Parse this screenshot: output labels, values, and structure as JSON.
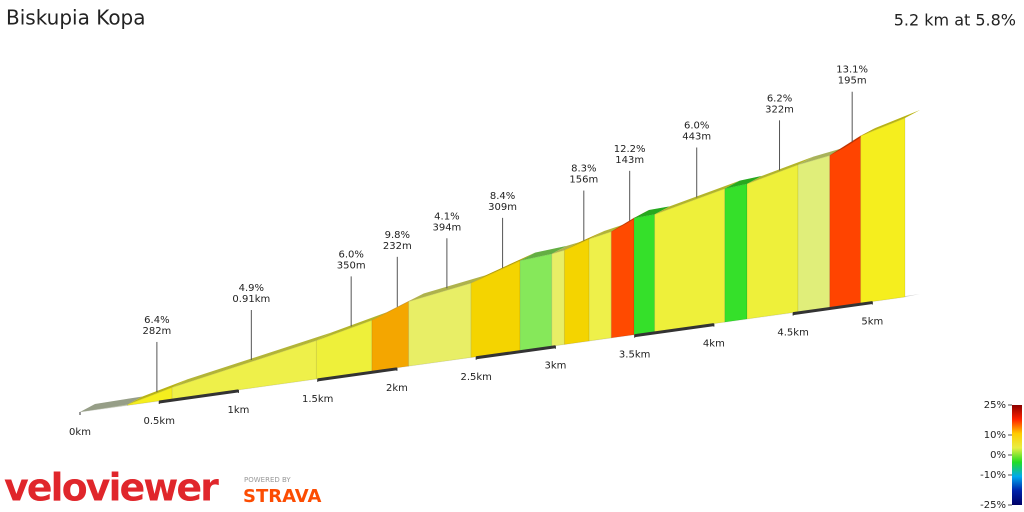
{
  "chart_data": {
    "type": "profile",
    "title": "Biskupia Kopa",
    "subtitle": "5.2 km at 5.8%",
    "lengths": [
      300,
      282,
      910,
      350,
      232,
      394,
      309,
      200,
      80,
      156,
      140,
      143,
      130,
      443,
      140,
      322,
      200,
      195,
      280
    ],
    "gradients": [
      0.5,
      6.4,
      4.9,
      6.0,
      9.8,
      4.1,
      8.4,
      2.0,
      4.0,
      8.3,
      5.0,
      12.2,
      1.0,
      6.0,
      2.0,
      6.2,
      4.0,
      13.1,
      7.0
    ],
    "colors": [
      "#c9d3b4",
      "#f5ee1e",
      "#eef04a",
      "#eef03a",
      "#f4a600",
      "#e8ee66",
      "#f4d400",
      "#86e85a",
      "#e8ee66",
      "#f4d400",
      "#eef04a",
      "#ff4a00",
      "#35e02a",
      "#eef03a",
      "#35e02a",
      "#eef03a",
      "#e0ee7a",
      "#ff4400",
      "#f5ee1e"
    ],
    "gradient_labels": [
      null,
      "6.4%",
      "4.9%",
      "6.0%",
      "9.8%",
      "4.1%",
      "8.4%",
      null,
      null,
      "8.3%",
      null,
      "12.2%",
      null,
      "6.0%",
      null,
      "6.2%",
      null,
      "13.1%",
      null
    ],
    "length_labels": [
      null,
      "282m",
      "0.91km",
      "350m",
      "232m",
      "394m",
      "309m",
      null,
      null,
      "156m",
      null,
      "143m",
      null,
      "443m",
      null,
      "322m",
      null,
      "195m",
      null
    ],
    "xlim": [
      0,
      5206
    ],
    "xticks": [
      {
        "value": 0,
        "label": "0km"
      },
      {
        "value": 500,
        "label": "0.5km"
      },
      {
        "value": 1000,
        "label": "1km"
      },
      {
        "value": 1500,
        "label": "1.5km"
      },
      {
        "value": 2000,
        "label": "2km"
      },
      {
        "value": 2500,
        "label": "2.5km"
      },
      {
        "value": 3000,
        "label": "3km"
      },
      {
        "value": 3500,
        "label": "3.5km"
      },
      {
        "value": 4000,
        "label": "4km"
      },
      {
        "value": 4500,
        "label": "4.5km"
      },
      {
        "value": 5000,
        "label": "5km"
      }
    ],
    "scale_ticks": [
      {
        "value": 25,
        "label": "25%"
      },
      {
        "value": 10,
        "label": "10%"
      },
      {
        "value": 0,
        "label": "0%"
      },
      {
        "value": -10,
        "label": "-10%"
      },
      {
        "value": -25,
        "label": "-25%"
      }
    ],
    "scale_colors": [
      "#8b0000",
      "#ff2200",
      "#ffcc00",
      "#e8ee44",
      "#22dd22",
      "#00aaee",
      "#0022aa",
      "#000066"
    ],
    "brand": "veloviewer",
    "powered_by": "POWERED BY",
    "strava": "STRAVA"
  }
}
